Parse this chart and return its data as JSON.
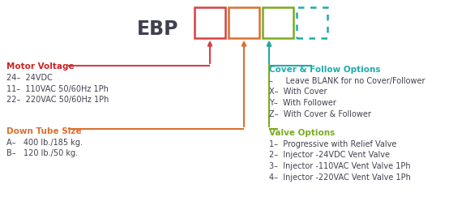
{
  "title": "EBP",
  "box1_color": "#d94040",
  "box2_color": "#d97030",
  "box3_color": "#7aaa20",
  "box4_color": "#20aaaa",
  "motor_voltage_label": "Motor Voltage",
  "motor_voltage_color": "#cc2222",
  "motor_voltage_lines": [
    "24–  24VDC",
    "11–  110VAC 50/60Hz 1Ph",
    "22–  220VAC 50/60Hz 1Ph"
  ],
  "down_tube_label": "Down Tube Size",
  "down_tube_color": "#d97030",
  "down_tube_lines": [
    "A–   400 lb./185 kg.",
    "B–   120 lb./50 kg."
  ],
  "cover_label": "Cover & Follow Options",
  "cover_color": "#20aaaa",
  "cover_lines": [
    "–     Leave BLANK for no Cover/Follower",
    "X–  With Cover",
    "Y–  With Follower",
    "Z–  With Cover & Follower"
  ],
  "valve_label": "Valve Options",
  "valve_color": "#7aaa20",
  "valve_lines": [
    "1–  Progressive with Relief Valve",
    "2–  Injector -24VDC Vent Valve",
    "3–  Injector -110VAC Vent Valve 1Ph",
    "4–  Injector -220VAC Vent Valve 1Ph"
  ],
  "text_color": "#404050",
  "background_color": "#ffffff"
}
